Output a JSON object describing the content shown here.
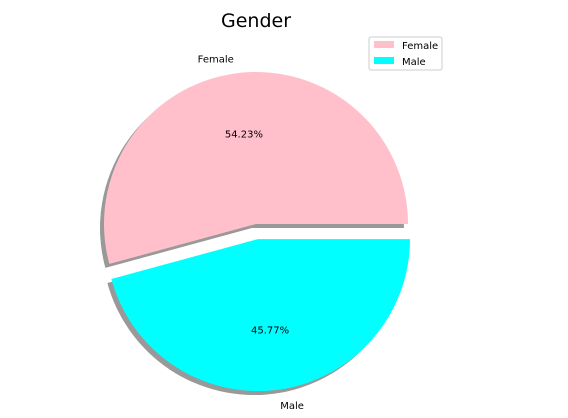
{
  "chart_data": {
    "type": "pie",
    "title": "Gender",
    "categories": [
      "Female",
      "Male"
    ],
    "values": [
      54.23,
      45.77
    ],
    "value_labels": [
      "54.23%",
      "45.77%"
    ],
    "colors": [
      "#ffc0cb",
      "#00ffff"
    ],
    "explode": [
      0,
      0.1
    ],
    "shadow": true,
    "start_angle_deg": 0,
    "legend": {
      "placement": "top-right",
      "entries": [
        "Female",
        "Male"
      ]
    }
  }
}
